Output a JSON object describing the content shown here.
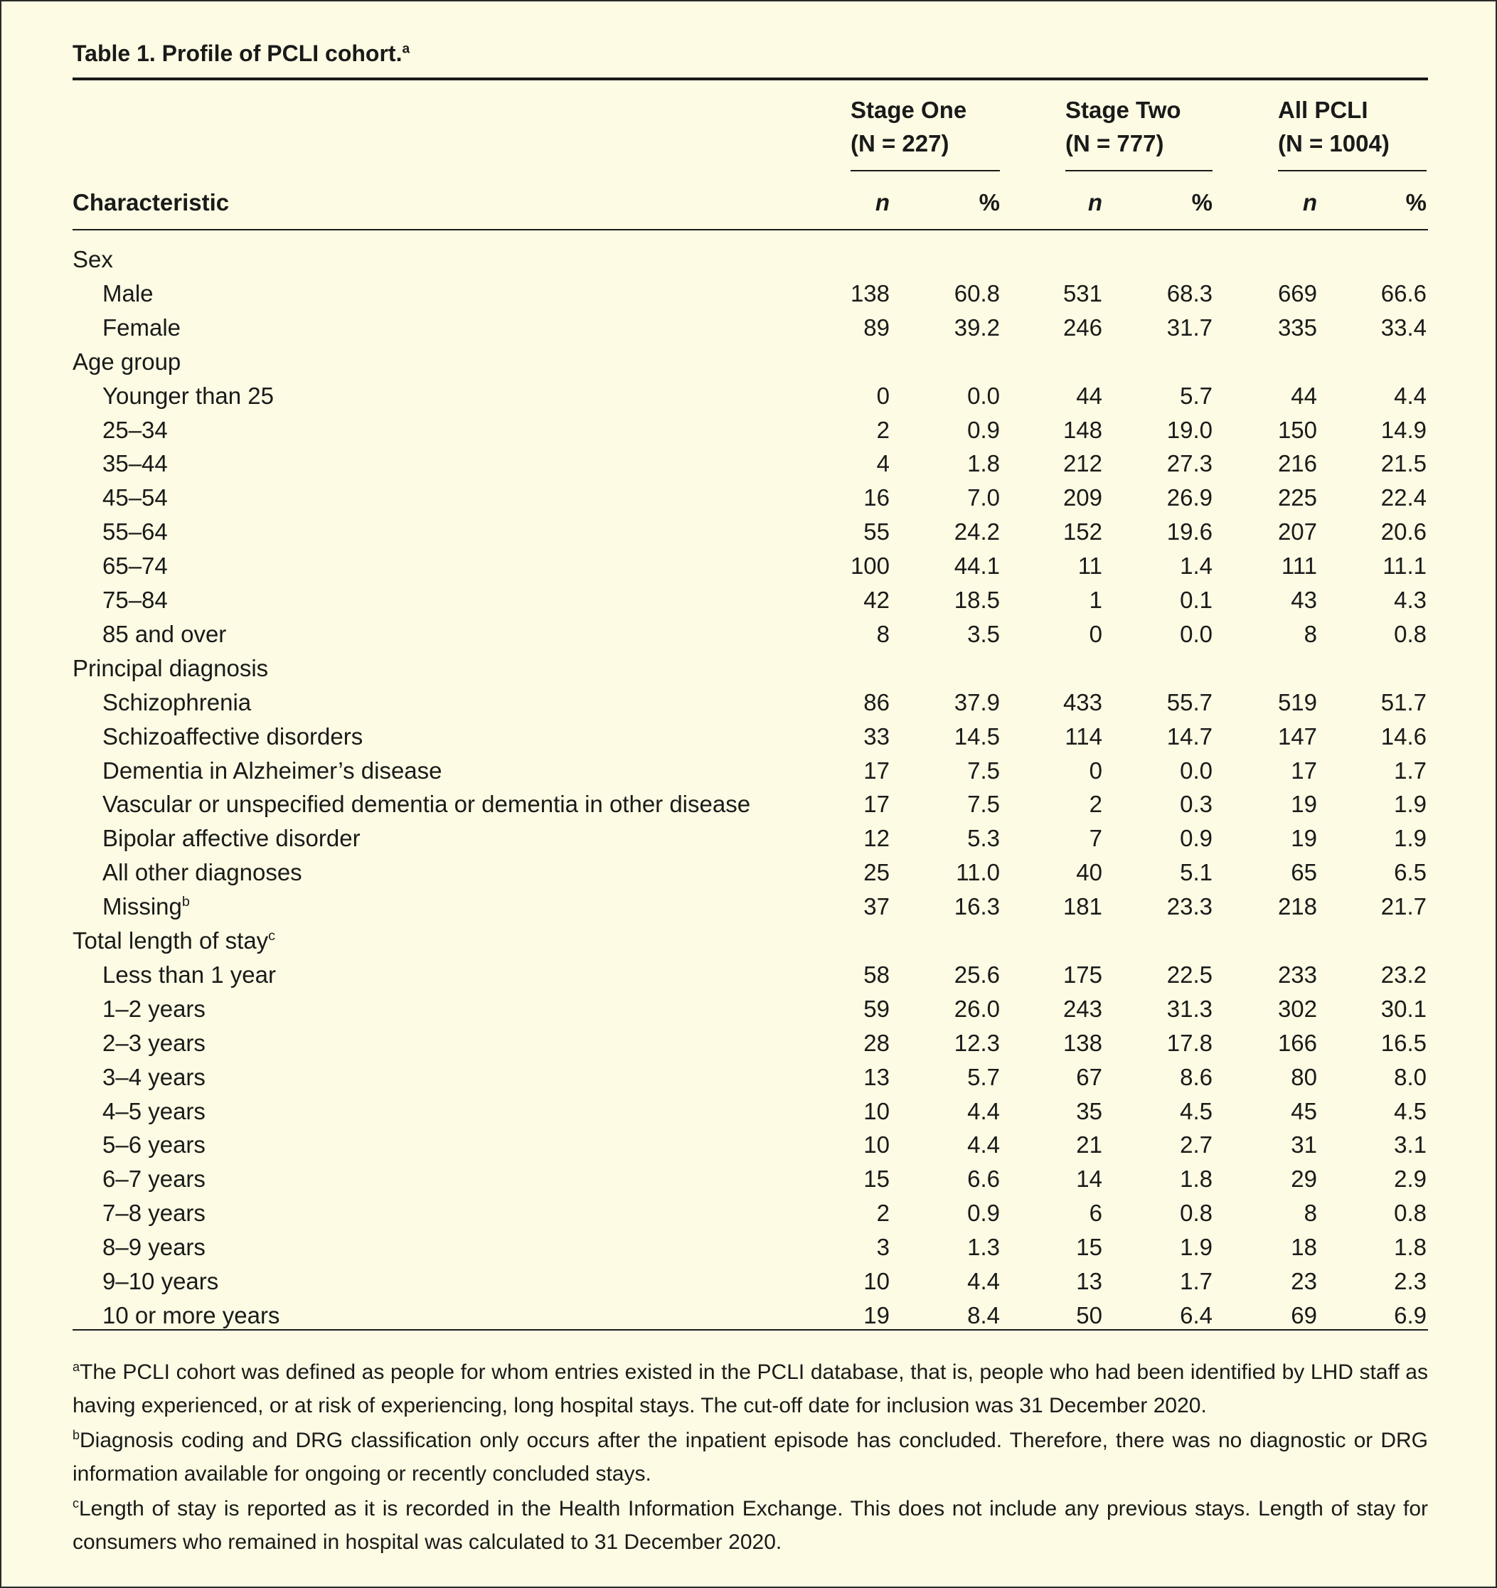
{
  "table": {
    "title": "Table 1. Profile of PCLI cohort.",
    "title_note": "a",
    "groups": [
      {
        "name": "Stage One",
        "size": "(N = 227)"
      },
      {
        "name": "Stage Two",
        "size": "(N = 777)"
      },
      {
        "name": "All PCLI",
        "size": "(N = 1004)"
      }
    ],
    "row_header": "Characteristic",
    "columns": [
      "n",
      "%",
      "n",
      "%",
      "n",
      "%"
    ],
    "rows": [
      {
        "label": "Sex"
      },
      {
        "label": "Male",
        "cells": [
          "138",
          "60.8",
          "531",
          "68.3",
          "669",
          "66.6"
        ]
      },
      {
        "label": "Female",
        "cells": [
          "89",
          "39.2",
          "246",
          "31.7",
          "335",
          "33.4"
        ]
      },
      {
        "label": "Age group"
      },
      {
        "label": "Younger than 25",
        "cells": [
          "0",
          "0.0",
          "44",
          "5.7",
          "44",
          "4.4"
        ]
      },
      {
        "label": "25–34",
        "cells": [
          "2",
          "0.9",
          "148",
          "19.0",
          "150",
          "14.9"
        ]
      },
      {
        "label": "35–44",
        "cells": [
          "4",
          "1.8",
          "212",
          "27.3",
          "216",
          "21.5"
        ]
      },
      {
        "label": "45–54",
        "cells": [
          "16",
          "7.0",
          "209",
          "26.9",
          "225",
          "22.4"
        ]
      },
      {
        "label": "55–64",
        "cells": [
          "55",
          "24.2",
          "152",
          "19.6",
          "207",
          "20.6"
        ]
      },
      {
        "label": "65–74",
        "cells": [
          "100",
          "44.1",
          "11",
          "1.4",
          "111",
          "11.1"
        ]
      },
      {
        "label": "75–84",
        "cells": [
          "42",
          "18.5",
          "1",
          "0.1",
          "43",
          "4.3"
        ]
      },
      {
        "label": "85 and over",
        "cells": [
          "8",
          "3.5",
          "0",
          "0.0",
          "8",
          "0.8"
        ]
      },
      {
        "label": "Principal diagnosis"
      },
      {
        "label": "Schizophrenia",
        "cells": [
          "86",
          "37.9",
          "433",
          "55.7",
          "519",
          "51.7"
        ]
      },
      {
        "label": "Schizoaffective disorders",
        "cells": [
          "33",
          "14.5",
          "114",
          "14.7",
          "147",
          "14.6"
        ]
      },
      {
        "label": "Dementia in Alzheimer’s disease",
        "cells": [
          "17",
          "7.5",
          "0",
          "0.0",
          "17",
          "1.7"
        ]
      },
      {
        "label": "Vascular or unspecified dementia or dementia in other disease",
        "cells": [
          "17",
          "7.5",
          "2",
          "0.3",
          "19",
          "1.9"
        ]
      },
      {
        "label": "Bipolar affective disorder",
        "cells": [
          "12",
          "5.3",
          "7",
          "0.9",
          "19",
          "1.9"
        ]
      },
      {
        "label": "All other diagnoses",
        "cells": [
          "25",
          "11.0",
          "40",
          "5.1",
          "65",
          "6.5"
        ]
      },
      {
        "label": "Missing",
        "note": "b",
        "cells": [
          "37",
          "16.3",
          "181",
          "23.3",
          "218",
          "21.7"
        ]
      },
      {
        "label": "Total length of stay",
        "note": "c"
      },
      {
        "label": "Less than 1 year",
        "cells": [
          "58",
          "25.6",
          "175",
          "22.5",
          "233",
          "23.2"
        ]
      },
      {
        "label": "1–2 years",
        "cells": [
          "59",
          "26.0",
          "243",
          "31.3",
          "302",
          "30.1"
        ]
      },
      {
        "label": "2–3 years",
        "cells": [
          "28",
          "12.3",
          "138",
          "17.8",
          "166",
          "16.5"
        ]
      },
      {
        "label": "3–4 years",
        "cells": [
          "13",
          "5.7",
          "67",
          "8.6",
          "80",
          "8.0"
        ]
      },
      {
        "label": "4–5 years",
        "cells": [
          "10",
          "4.4",
          "35",
          "4.5",
          "45",
          "4.5"
        ]
      },
      {
        "label": "5–6 years",
        "cells": [
          "10",
          "4.4",
          "21",
          "2.7",
          "31",
          "3.1"
        ]
      },
      {
        "label": "6–7 years",
        "cells": [
          "15",
          "6.6",
          "14",
          "1.8",
          "29",
          "2.9"
        ]
      },
      {
        "label": "7–8 years",
        "cells": [
          "2",
          "0.9",
          "6",
          "0.8",
          "8",
          "0.8"
        ]
      },
      {
        "label": "8–9 years",
        "cells": [
          "3",
          "1.3",
          "15",
          "1.9",
          "18",
          "1.8"
        ]
      },
      {
        "label": "9–10 years",
        "cells": [
          "10",
          "4.4",
          "13",
          "1.7",
          "23",
          "2.3"
        ]
      },
      {
        "label": "10 or more years",
        "cells": [
          "19",
          "8.4",
          "50",
          "6.4",
          "69",
          "6.9"
        ]
      }
    ],
    "footnotes": [
      {
        "mark": "a",
        "text": "The PCLI cohort was defined as people for whom entries existed in the PCLI database, that is, people who had been identified by LHD staff as having experienced, or at risk of experiencing, long hospital stays. The cut-off date for inclusion was 31 December 2020."
      },
      {
        "mark": "b",
        "text": "Diagnosis coding and DRG classification only occurs after the inpatient episode has concluded. Therefore, there was no diagnostic or DRG information available for ongoing or recently concluded stays."
      },
      {
        "mark": "c",
        "text": "Length of stay is reported as it is recorded in the Health Information Exchange. This does not include any previous stays. Length of stay for consumers who remained in hospital was calculated to 31 December 2020."
      }
    ]
  }
}
